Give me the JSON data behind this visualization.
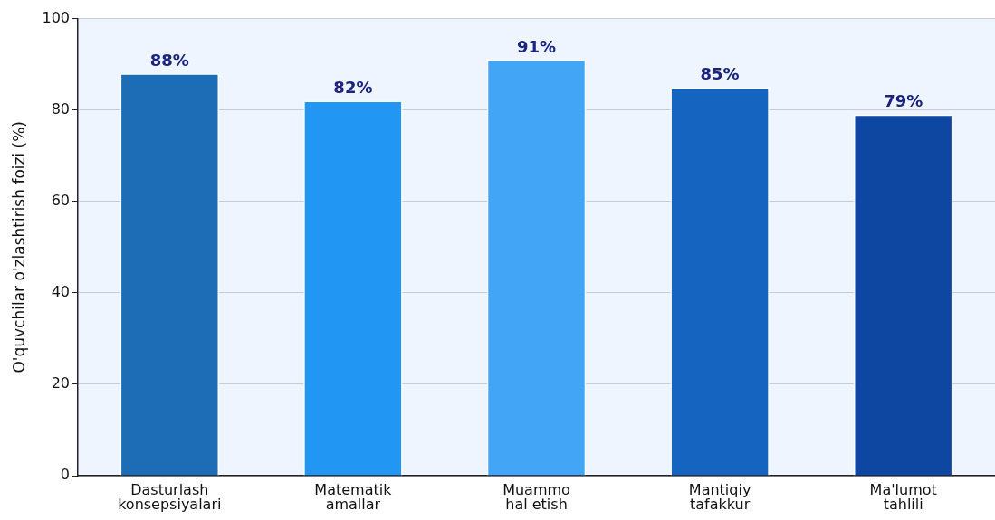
{
  "chart_data": {
    "type": "bar",
    "ylabel": "O'quvchilar o'zlashtirish foizi (%)",
    "categories": [
      "Dasturlash konsepsiyalari",
      "Matematik amallar",
      "Muammo hal etish",
      "Mantiqiy tafakkur",
      "Ma'lumot tahlili"
    ],
    "values": [
      88,
      82,
      91,
      85,
      79
    ],
    "colors": [
      "#1c6db5",
      "#2196f3",
      "#42a5f5",
      "#1565c0",
      "#0d47a1"
    ],
    "value_labels": [
      "88%",
      "82%",
      "91%",
      "85%",
      "79%"
    ],
    "ylim": [
      0,
      100
    ],
    "yticks": [
      0,
      20,
      40,
      60,
      80,
      100
    ],
    "grid": "y"
  }
}
